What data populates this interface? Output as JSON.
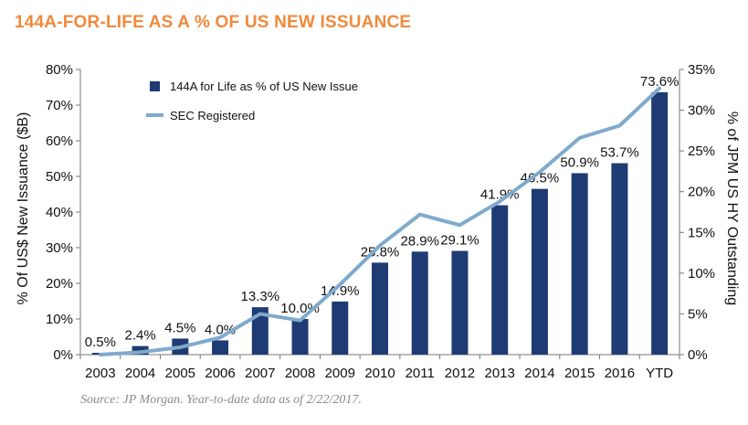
{
  "title": "144A-FOR-LIFE AS A % OF US NEW ISSUANCE",
  "source": "Source: JP Morgan. Year-to-date data as of 2/22/2017.",
  "colors": {
    "bar": "#1F3B73",
    "line": "#7FAACC",
    "title": "#F08A3C"
  },
  "chart_data": {
    "type": "bar",
    "categories": [
      "2003",
      "2004",
      "2005",
      "2006",
      "2007",
      "2008",
      "2009",
      "2010",
      "2011",
      "2012",
      "2013",
      "2014",
      "2015",
      "2016",
      "YTD"
    ],
    "series": [
      {
        "name": "144A for Life as % of US New Issue",
        "type": "bar",
        "axis": "left",
        "values": [
          0.5,
          2.4,
          4.5,
          4.0,
          13.3,
          10.0,
          14.9,
          25.8,
          28.9,
          29.1,
          41.9,
          46.5,
          50.9,
          53.7,
          73.6
        ],
        "labels": [
          "0.5%",
          "2.4%",
          "4.5%",
          "4.0%",
          "13.3%",
          "10.0%",
          "14.9%",
          "25.8%",
          "28.9%",
          "29.1%",
          "41.9%",
          "46.5%",
          "50.9%",
          "53.7%",
          "73.6%"
        ]
      },
      {
        "name": "SEC Registered",
        "type": "line",
        "axis": "right",
        "values": [
          0.0,
          0.3,
          0.9,
          2.1,
          5.0,
          4.2,
          8.6,
          13.4,
          17.2,
          15.9,
          18.8,
          22.4,
          26.6,
          28.1,
          32.7
        ]
      }
    ],
    "y_left": {
      "label": "% Of US$ New Issuance ($B)",
      "ylim": [
        0,
        80
      ],
      "ticks": [
        0,
        10,
        20,
        30,
        40,
        50,
        60,
        70,
        80
      ],
      "tick_labels": [
        "0%",
        "10%",
        "20%",
        "30%",
        "40%",
        "50%",
        "60%",
        "70%",
        "80%"
      ]
    },
    "y_right": {
      "label": "% of JPM US HY Outstanding",
      "ylim": [
        0,
        35
      ],
      "ticks": [
        0,
        5,
        10,
        15,
        20,
        25,
        30,
        35
      ],
      "tick_labels": [
        "0%",
        "5%",
        "10%",
        "15%",
        "20%",
        "25%",
        "30%",
        "35%"
      ]
    },
    "legend_position": "top-left",
    "grid": false
  }
}
